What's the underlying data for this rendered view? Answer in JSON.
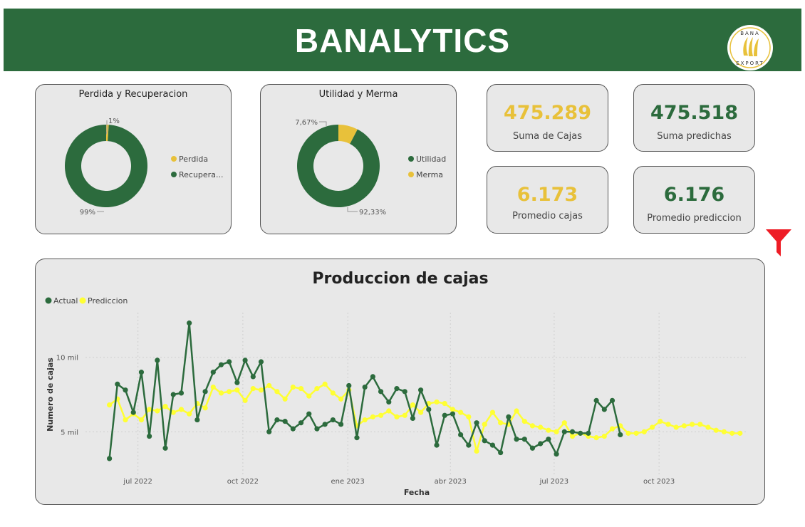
{
  "header": {
    "title": "BANALYTICS",
    "logo_text_top": "BANA",
    "logo_text_bottom": "EXPORT"
  },
  "donut1": {
    "title": "Perdida y Recuperacion",
    "slices": [
      {
        "name": "Perdida",
        "value": 1,
        "label": "1%",
        "color": "#e8c13a"
      },
      {
        "name": "Recupera...",
        "value": 99,
        "label": "99%",
        "color": "#2c6b3d"
      }
    ]
  },
  "donut2": {
    "title": "Utilidad y Merma",
    "slices": [
      {
        "name": "Merma",
        "value": 7.67,
        "label": "7,67%",
        "color": "#e8c13a"
      },
      {
        "name": "Utilidad",
        "value": 92.33,
        "label": "92,33%",
        "color": "#2c6b3d"
      }
    ]
  },
  "kpis": {
    "suma_cajas": {
      "value": "475.289",
      "label": "Suma de Cajas",
      "color": "#e8c13a"
    },
    "suma_predichas": {
      "value": "475.518",
      "label": "Suma predichas",
      "color": "#2c6b3d"
    },
    "promedio_cajas": {
      "value": "6.173",
      "label": "Promedio cajas",
      "color": "#e8c13a"
    },
    "promedio_prediccion": {
      "value": "6.176",
      "label": "Promedio prediccion",
      "color": "#2c6b3d"
    }
  },
  "filter_icon": "funnel-icon",
  "chart_data": {
    "type": "line",
    "title": "Produccion de cajas",
    "xlabel": "Fecha",
    "ylabel": "Numero de cajas",
    "x_ticks": [
      {
        "label": "jul 2022",
        "date": "2022-07-01"
      },
      {
        "label": "oct 2022",
        "date": "2022-10-01"
      },
      {
        "label": "ene 2023",
        "date": "2023-01-01"
      },
      {
        "label": "abr 2023",
        "date": "2023-04-01"
      },
      {
        "label": "jul 2023",
        "date": "2023-07-01"
      },
      {
        "label": "oct 2023",
        "date": "2023-10-01"
      }
    ],
    "y_ticks": [
      {
        "label": "5 mil",
        "value": 5000
      },
      {
        "label": "10 mil",
        "value": 10000
      }
    ],
    "ylim": [
      2000,
      13000
    ],
    "xlim": [
      "2022-05-16",
      "2023-12-18"
    ],
    "grid": true,
    "legend_position": "top-left",
    "x": [
      "2022-06-06",
      "2022-06-13",
      "2022-06-20",
      "2022-06-27",
      "2022-07-04",
      "2022-07-11",
      "2022-07-18",
      "2022-07-25",
      "2022-08-01",
      "2022-08-08",
      "2022-08-15",
      "2022-08-22",
      "2022-08-29",
      "2022-09-05",
      "2022-09-12",
      "2022-09-19",
      "2022-09-26",
      "2022-10-03",
      "2022-10-10",
      "2022-10-17",
      "2022-10-24",
      "2022-10-31",
      "2022-11-07",
      "2022-11-14",
      "2022-11-21",
      "2022-11-28",
      "2022-12-05",
      "2022-12-12",
      "2022-12-19",
      "2022-12-26",
      "2023-01-02",
      "2023-01-09",
      "2023-01-16",
      "2023-01-23",
      "2023-01-30",
      "2023-02-06",
      "2023-02-13",
      "2023-02-20",
      "2023-02-27",
      "2023-03-06",
      "2023-03-13",
      "2023-03-20",
      "2023-03-27",
      "2023-04-03",
      "2023-04-10",
      "2023-04-17",
      "2023-04-24",
      "2023-05-01",
      "2023-05-08",
      "2023-05-15",
      "2023-05-22",
      "2023-05-29",
      "2023-06-05",
      "2023-06-12",
      "2023-06-19",
      "2023-06-26",
      "2023-07-03",
      "2023-07-10",
      "2023-07-17",
      "2023-07-24",
      "2023-07-31",
      "2023-08-07",
      "2023-08-14",
      "2023-08-21",
      "2023-08-28",
      "2023-09-04",
      "2023-09-11",
      "2023-09-18",
      "2023-09-25",
      "2023-10-02",
      "2023-10-09",
      "2023-10-16",
      "2023-10-23",
      "2023-10-30",
      "2023-11-06",
      "2023-11-13",
      "2023-11-20",
      "2023-11-27",
      "2023-12-04",
      "2023-12-11"
    ],
    "series": [
      {
        "name": "Actual",
        "color": "#2c6b3d",
        "values": [
          3200,
          8200,
          7800,
          6300,
          9000,
          4700,
          9800,
          3900,
          7500,
          7600,
          12300,
          5800,
          7700,
          9000,
          9500,
          9700,
          8300,
          9800,
          8700,
          9700,
          5000,
          5800,
          5700,
          5200,
          5600,
          6200,
          5200,
          5500,
          5800,
          5500,
          8100,
          4600,
          8000,
          8700,
          7700,
          7000,
          7900,
          7700,
          5900,
          7800,
          6500,
          4100,
          6100,
          6200,
          4800,
          4100,
          5600,
          4400,
          4100,
          3600,
          6000,
          4500,
          4500,
          3900,
          4200,
          4500,
          3500,
          5000,
          5000,
          4900,
          4900,
          7100,
          6500,
          7100,
          4800,
          null,
          null,
          null,
          null,
          null,
          null,
          null,
          null,
          null,
          null,
          null,
          null,
          null,
          null,
          null
        ]
      },
      {
        "name": "Prediccion",
        "color": "#ffff33",
        "values": [
          6800,
          7200,
          5800,
          6200,
          5800,
          6500,
          6400,
          6700,
          6300,
          6500,
          6200,
          6900,
          6600,
          8000,
          7600,
          7700,
          7800,
          7100,
          7900,
          7800,
          8100,
          7700,
          7200,
          8000,
          7900,
          7400,
          7900,
          8200,
          7600,
          7200,
          7800,
          5400,
          5800,
          6000,
          6100,
          6400,
          6000,
          6100,
          6800,
          6300,
          6900,
          7000,
          6900,
          6500,
          6300,
          6000,
          3700,
          5500,
          6300,
          5600,
          5500,
          6400,
          5700,
          5400,
          5300,
          5100,
          5000,
          5600,
          4700,
          4900,
          4700,
          4600,
          4700,
          5200,
          5400,
          4900,
          4900,
          5000,
          5300,
          5700,
          5500,
          5300,
          5400,
          5500,
          5500,
          5300,
          5100,
          5000,
          4900,
          4900
        ]
      }
    ]
  }
}
